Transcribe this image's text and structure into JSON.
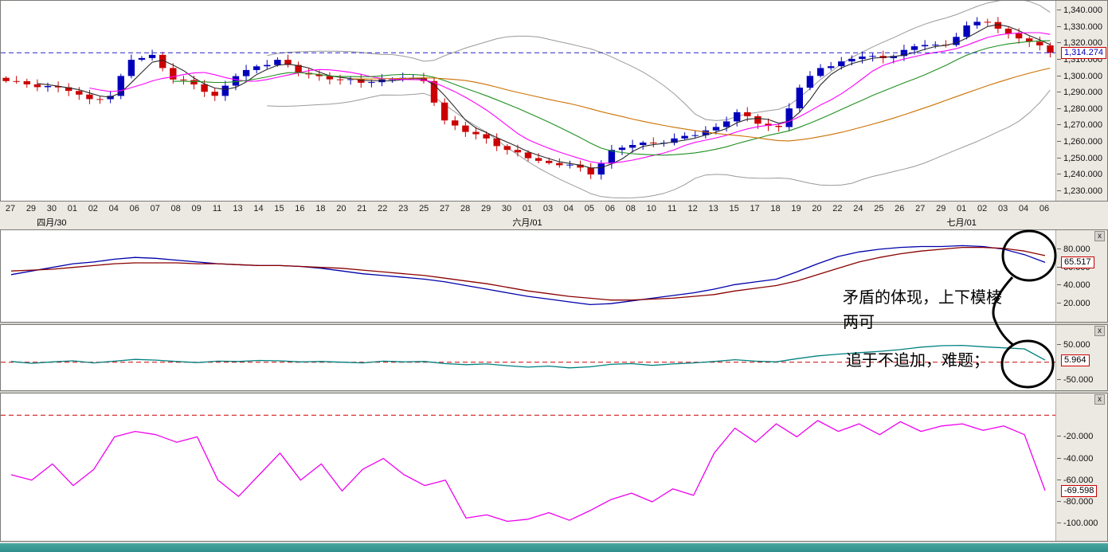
{
  "ui": {
    "close_label": "x",
    "colors": {
      "up_candle": "#0000bb",
      "down_candle": "#cc0000",
      "boll_band": "#9a9a9a",
      "ma": [
        "#2a2a2a",
        "#ff00ff",
        "#1f8f1f",
        "#cc7000"
      ],
      "last_price_line": "#2222cc",
      "ind1_fast": "#0000aa",
      "ind1_slow": "#8b0000",
      "ind2_line": "#008080",
      "ind3_line": "#ee00ee",
      "zero_line": "#cc0000"
    }
  },
  "annotations": {
    "note_line1": "矛盾的体现，上下模棱",
    "note_line2": "两可",
    "note_line3": "追于不追加，难题；"
  },
  "chart_data": [
    {
      "type": "candlestick",
      "panel": "price",
      "ylim": [
        1224,
        1346
      ],
      "yticks": [
        "1,340.000",
        "1,330.000",
        "1,320.000",
        "1,310.000",
        "1,300.000",
        "1,290.000",
        "1,280.000",
        "1,270.000",
        "1,260.000",
        "1,250.000",
        "1,240.000",
        "1,230.000"
      ],
      "x": [
        "27",
        "29",
        "30",
        "01",
        "02",
        "04",
        "06",
        "07",
        "08",
        "09",
        "11",
        "13",
        "14",
        "15",
        "16",
        "18",
        "20",
        "21",
        "22",
        "23",
        "25",
        "27",
        "28",
        "29",
        "30",
        "01",
        "03",
        "04",
        "05",
        "06",
        "08",
        "10",
        "11",
        "12",
        "13",
        "15",
        "17",
        "18",
        "19",
        "20",
        "22",
        "24",
        "25",
        "26",
        "27",
        "29",
        "01",
        "02",
        "03",
        "04",
        "06"
      ],
      "close": [
        1297,
        1295,
        1294,
        1291,
        1286,
        1288,
        1310,
        1313,
        1298,
        1295,
        1288,
        1300,
        1306,
        1310,
        1302,
        1300,
        1298,
        1296,
        1298,
        1299,
        1297,
        1273,
        1266,
        1262,
        1255,
        1250,
        1247,
        1246,
        1240,
        1255,
        1258,
        1259,
        1262,
        1264,
        1269,
        1278,
        1271,
        1269,
        1293,
        1305,
        1309,
        1312,
        1311,
        1316,
        1319,
        1319,
        1331,
        1333,
        1326,
        1321,
        1314.274
      ],
      "month_labels": [
        {
          "label": "四月/30",
          "index": 2
        },
        {
          "label": "六月/01",
          "index": 25
        },
        {
          "label": "七月/01",
          "index": 46
        }
      ],
      "last_price": 1314.274,
      "last_price_label": "1,314.274",
      "overlays": {
        "bollinger_window": 26,
        "bollinger_k": 2,
        "ma_windows": [
          4,
          9,
          17,
          34
        ]
      }
    },
    {
      "type": "line",
      "panel": "indicator-upper",
      "ylim": [
        0,
        101
      ],
      "yticks": [
        "80.000",
        "60.000",
        "40.000",
        "20.000"
      ],
      "value": 65.517,
      "value_label": "65.517",
      "series": [
        {
          "name": "fast",
          "color_key": "ind1_fast",
          "values": [
            52,
            56,
            60,
            64,
            66,
            69,
            71,
            70,
            68,
            66,
            64,
            63,
            62,
            62,
            61,
            59,
            56,
            53,
            51,
            49,
            47,
            44,
            40,
            36,
            32,
            28,
            25,
            22,
            19,
            20,
            23,
            26,
            29,
            32,
            36,
            41,
            44,
            47,
            55,
            64,
            72,
            77,
            80,
            82,
            83,
            83,
            84,
            83,
            80,
            74,
            65.517
          ]
        },
        {
          "name": "slow",
          "color_key": "ind1_slow",
          "values": [
            56,
            57,
            58,
            60,
            62,
            64,
            65,
            65,
            65,
            64,
            64,
            63,
            62,
            62,
            61,
            60,
            59,
            57,
            55,
            53,
            51,
            48,
            45,
            42,
            38,
            34,
            31,
            28,
            26,
            24,
            24,
            25,
            26,
            28,
            30,
            34,
            37,
            40,
            45,
            52,
            59,
            66,
            71,
            75,
            78,
            80,
            82,
            82,
            81,
            78,
            73
          ]
        }
      ]
    },
    {
      "type": "line",
      "panel": "indicator-middle",
      "ylim": [
        -80,
        106
      ],
      "yticks": [
        "50.000",
        "-50.000"
      ],
      "value": 5.964,
      "value_label": "5.964",
      "zero_dashed_line": 0,
      "series": [
        {
          "name": "oscillator",
          "color_key": "ind2_line",
          "values": [
            2,
            -3,
            1,
            4,
            -2,
            3,
            8,
            6,
            2,
            -1,
            3,
            2,
            5,
            4,
            1,
            2,
            0,
            -2,
            3,
            1,
            2,
            -4,
            -7,
            -5,
            -10,
            -14,
            -11,
            -16,
            -13,
            -6,
            -4,
            -9,
            -5,
            -2,
            2,
            7,
            3,
            1,
            10,
            18,
            23,
            27,
            31,
            36,
            43,
            47,
            48,
            44,
            41,
            38,
            5.964
          ]
        }
      ]
    },
    {
      "type": "line",
      "panel": "indicator-lower",
      "ylim": [
        -116,
        20
      ],
      "yticks": [
        "-20.000",
        "-40.000",
        "-60.000",
        "-80.000",
        "-100.000"
      ],
      "value": -69.598,
      "value_label": "-69.598",
      "zero_dashed_line": 0,
      "series": [
        {
          "name": "oscillator",
          "color_key": "ind3_line",
          "values": [
            -55,
            -60,
            -45,
            -65,
            -50,
            -20,
            -15,
            -18,
            -25,
            -20,
            -60,
            -75,
            -55,
            -35,
            -60,
            -45,
            -70,
            -50,
            -40,
            -55,
            -65,
            -60,
            -95,
            -92,
            -98,
            -96,
            -90,
            -97,
            -88,
            -78,
            -72,
            -80,
            -68,
            -74,
            -35,
            -12,
            -25,
            -8,
            -20,
            -5,
            -15,
            -8,
            -18,
            -6,
            -15,
            -10,
            -8,
            -14,
            -10,
            -18,
            -69.598
          ]
        }
      ]
    }
  ]
}
